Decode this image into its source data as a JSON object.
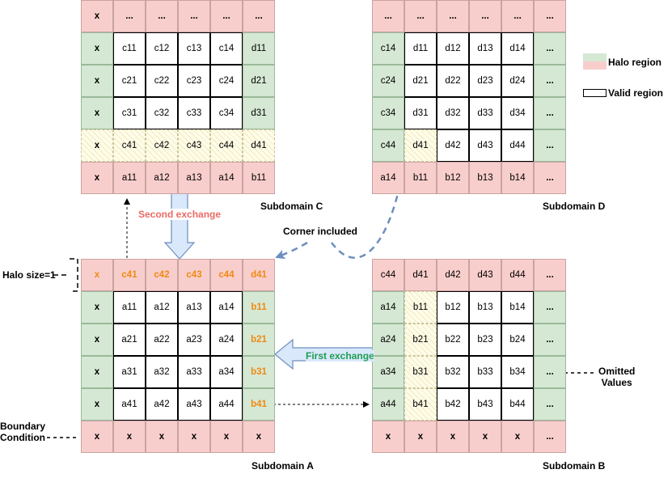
{
  "subdomains": [
    {
      "key": "C",
      "title": "Subdomain C",
      "cells": [
        [
          {
            "t": "x",
            "c": "r",
            "b": 1
          },
          {
            "t": "...",
            "c": "r",
            "b": 1
          },
          {
            "t": "...",
            "c": "r",
            "b": 1
          },
          {
            "t": "...",
            "c": "r",
            "b": 1
          },
          {
            "t": "...",
            "c": "r",
            "b": 1
          },
          {
            "t": "...",
            "c": "r",
            "b": 1
          }
        ],
        [
          {
            "t": "x",
            "c": "g",
            "b": 1
          },
          {
            "t": "c11",
            "c": "v"
          },
          {
            "t": "c12",
            "c": "v"
          },
          {
            "t": "c13",
            "c": "v"
          },
          {
            "t": "c14",
            "c": "v"
          },
          {
            "t": "d11",
            "c": "g"
          }
        ],
        [
          {
            "t": "x",
            "c": "g",
            "b": 1
          },
          {
            "t": "c21",
            "c": "v"
          },
          {
            "t": "c22",
            "c": "v"
          },
          {
            "t": "c23",
            "c": "v"
          },
          {
            "t": "c24",
            "c": "v"
          },
          {
            "t": "d21",
            "c": "g"
          }
        ],
        [
          {
            "t": "x",
            "c": "g",
            "b": 1
          },
          {
            "t": "c31",
            "c": "v"
          },
          {
            "t": "c32",
            "c": "v"
          },
          {
            "t": "c33",
            "c": "v"
          },
          {
            "t": "c34",
            "c": "v"
          },
          {
            "t": "d31",
            "c": "g"
          }
        ],
        [
          {
            "t": "x",
            "c": "y",
            "b": 1
          },
          {
            "t": "c41",
            "c": "y"
          },
          {
            "t": "c42",
            "c": "y"
          },
          {
            "t": "c43",
            "c": "y"
          },
          {
            "t": "c44",
            "c": "y"
          },
          {
            "t": "d41",
            "c": "y"
          }
        ],
        [
          {
            "t": "x",
            "c": "r",
            "b": 1
          },
          {
            "t": "a11",
            "c": "r"
          },
          {
            "t": "a12",
            "c": "r"
          },
          {
            "t": "a13",
            "c": "r"
          },
          {
            "t": "a14",
            "c": "r"
          },
          {
            "t": "b11",
            "c": "r"
          }
        ]
      ]
    },
    {
      "key": "D",
      "title": "Subdomain D",
      "cells": [
        [
          {
            "t": "...",
            "c": "r",
            "b": 1
          },
          {
            "t": "...",
            "c": "r",
            "b": 1
          },
          {
            "t": "...",
            "c": "r",
            "b": 1
          },
          {
            "t": "...",
            "c": "r",
            "b": 1
          },
          {
            "t": "...",
            "c": "r",
            "b": 1
          },
          {
            "t": "...",
            "c": "r",
            "b": 1
          }
        ],
        [
          {
            "t": "c14",
            "c": "g"
          },
          {
            "t": "d11",
            "c": "v"
          },
          {
            "t": "d12",
            "c": "v"
          },
          {
            "t": "d13",
            "c": "v"
          },
          {
            "t": "d14",
            "c": "v"
          },
          {
            "t": "...",
            "c": "g",
            "b": 1
          }
        ],
        [
          {
            "t": "c24",
            "c": "g"
          },
          {
            "t": "d21",
            "c": "v"
          },
          {
            "t": "d22",
            "c": "v"
          },
          {
            "t": "d23",
            "c": "v"
          },
          {
            "t": "d24",
            "c": "v"
          },
          {
            "t": "...",
            "c": "g",
            "b": 1
          }
        ],
        [
          {
            "t": "c34",
            "c": "g"
          },
          {
            "t": "d31",
            "c": "v"
          },
          {
            "t": "d32",
            "c": "v"
          },
          {
            "t": "d33",
            "c": "v"
          },
          {
            "t": "d34",
            "c": "v"
          },
          {
            "t": "...",
            "c": "g",
            "b": 1
          }
        ],
        [
          {
            "t": "c44",
            "c": "g"
          },
          {
            "t": "d41",
            "c": "y"
          },
          {
            "t": "d42",
            "c": "v"
          },
          {
            "t": "d43",
            "c": "v"
          },
          {
            "t": "d44",
            "c": "v"
          },
          {
            "t": "...",
            "c": "g",
            "b": 1
          }
        ],
        [
          {
            "t": "a14",
            "c": "r"
          },
          {
            "t": "b11",
            "c": "r"
          },
          {
            "t": "b12",
            "c": "r"
          },
          {
            "t": "b13",
            "c": "r"
          },
          {
            "t": "b14",
            "c": "r"
          },
          {
            "t": "...",
            "c": "r",
            "b": 1
          }
        ]
      ]
    },
    {
      "key": "A",
      "title": "Subdomain A",
      "cells": [
        [
          {
            "t": "x",
            "c": "r",
            "o": 1
          },
          {
            "t": "c41",
            "c": "r",
            "o": 1
          },
          {
            "t": "c42",
            "c": "r",
            "o": 1
          },
          {
            "t": "c43",
            "c": "r",
            "o": 1
          },
          {
            "t": "c44",
            "c": "r",
            "o": 1
          },
          {
            "t": "d41",
            "c": "r",
            "o": 1
          }
        ],
        [
          {
            "t": "x",
            "c": "g",
            "b": 1
          },
          {
            "t": "a11",
            "c": "v"
          },
          {
            "t": "a12",
            "c": "v"
          },
          {
            "t": "a13",
            "c": "v"
          },
          {
            "t": "a14",
            "c": "v"
          },
          {
            "t": "b11",
            "c": "g",
            "o": 1
          }
        ],
        [
          {
            "t": "x",
            "c": "g",
            "b": 1
          },
          {
            "t": "a21",
            "c": "v"
          },
          {
            "t": "a22",
            "c": "v"
          },
          {
            "t": "a23",
            "c": "v"
          },
          {
            "t": "a24",
            "c": "v"
          },
          {
            "t": "b21",
            "c": "g",
            "o": 1
          }
        ],
        [
          {
            "t": "x",
            "c": "g",
            "b": 1
          },
          {
            "t": "a31",
            "c": "v"
          },
          {
            "t": "a32",
            "c": "v"
          },
          {
            "t": "a33",
            "c": "v"
          },
          {
            "t": "a34",
            "c": "v"
          },
          {
            "t": "b31",
            "c": "g",
            "o": 1
          }
        ],
        [
          {
            "t": "x",
            "c": "g",
            "b": 1
          },
          {
            "t": "a41",
            "c": "v"
          },
          {
            "t": "a42",
            "c": "v"
          },
          {
            "t": "a43",
            "c": "v"
          },
          {
            "t": "a44",
            "c": "v"
          },
          {
            "t": "b41",
            "c": "g",
            "o": 1
          }
        ],
        [
          {
            "t": "x",
            "c": "r",
            "b": 1
          },
          {
            "t": "x",
            "c": "r",
            "b": 1
          },
          {
            "t": "x",
            "c": "r",
            "b": 1
          },
          {
            "t": "x",
            "c": "r",
            "b": 1
          },
          {
            "t": "x",
            "c": "r",
            "b": 1
          },
          {
            "t": "x",
            "c": "r",
            "b": 1
          }
        ]
      ]
    },
    {
      "key": "B",
      "title": "Subdomain B",
      "cells": [
        [
          {
            "t": "c44",
            "c": "r"
          },
          {
            "t": "d41",
            "c": "r"
          },
          {
            "t": "d42",
            "c": "r"
          },
          {
            "t": "d43",
            "c": "r"
          },
          {
            "t": "d44",
            "c": "r"
          },
          {
            "t": "...",
            "c": "r",
            "b": 1
          }
        ],
        [
          {
            "t": "a14",
            "c": "g"
          },
          {
            "t": "b11",
            "c": "y"
          },
          {
            "t": "b12",
            "c": "v"
          },
          {
            "t": "b13",
            "c": "v"
          },
          {
            "t": "b14",
            "c": "v"
          },
          {
            "t": "...",
            "c": "g",
            "b": 1
          }
        ],
        [
          {
            "t": "a24",
            "c": "g"
          },
          {
            "t": "b21",
            "c": "y"
          },
          {
            "t": "b22",
            "c": "v"
          },
          {
            "t": "b23",
            "c": "v"
          },
          {
            "t": "b24",
            "c": "v"
          },
          {
            "t": "...",
            "c": "g",
            "b": 1
          }
        ],
        [
          {
            "t": "a34",
            "c": "g"
          },
          {
            "t": "b31",
            "c": "y"
          },
          {
            "t": "b32",
            "c": "v"
          },
          {
            "t": "b33",
            "c": "v"
          },
          {
            "t": "b34",
            "c": "v"
          },
          {
            "t": "...",
            "c": "g",
            "b": 1
          }
        ],
        [
          {
            "t": "a44",
            "c": "g"
          },
          {
            "t": "b41",
            "c": "y"
          },
          {
            "t": "b42",
            "c": "v"
          },
          {
            "t": "b43",
            "c": "v"
          },
          {
            "t": "b44",
            "c": "v"
          },
          {
            "t": "...",
            "c": "g",
            "b": 1
          }
        ],
        [
          {
            "t": "x",
            "c": "r",
            "b": 1
          },
          {
            "t": "x",
            "c": "r",
            "b": 1
          },
          {
            "t": "x",
            "c": "r",
            "b": 1
          },
          {
            "t": "x",
            "c": "r",
            "b": 1
          },
          {
            "t": "x",
            "c": "r",
            "b": 1
          },
          {
            "t": "...",
            "c": "r",
            "b": 1
          }
        ]
      ]
    }
  ],
  "labels": {
    "second_exchange": "Second exchange",
    "first_exchange": "First exchange",
    "corner_included": "Corner included",
    "halo_size": "Halo size=1",
    "omitted_values": "Omitted\nValues",
    "boundary_condition": "Boundary\nCondition"
  },
  "legend": {
    "halo": "Halo region",
    "valid": "Valid region"
  },
  "colors": {
    "halo_green": "#d5e8d4",
    "halo_red": "#f8cecc",
    "overlap_yellow": "#fffce8",
    "highlight_orange": "#f08a12",
    "second_exchange_text": "#ea6b66",
    "first_exchange_text": "#1f9f4f",
    "arrow_fill": "#dae8fc",
    "arrow_stroke": "#6c8ebf"
  }
}
